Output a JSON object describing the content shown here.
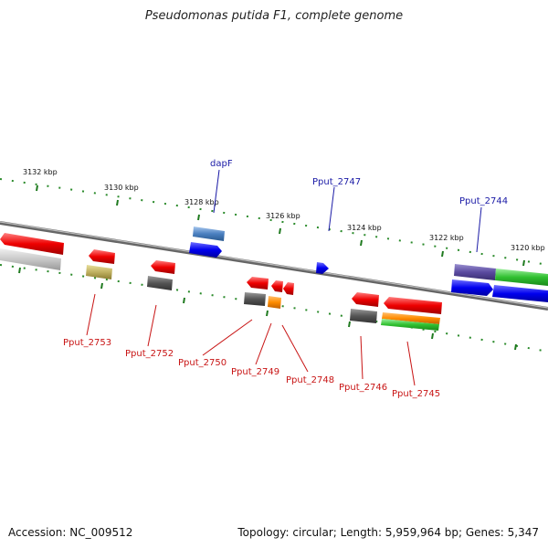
{
  "title": "Pseudomonas putida F1, complete genome",
  "footer": {
    "accession": "Accession: NC_009512",
    "summary": "Topology: circular; Length: 5,959,964 bp; Genes: 5,347"
  },
  "scale_labels": [
    "3132 kbp",
    "3130 kbp",
    "3128 kbp",
    "3126 kbp",
    "3124 kbp",
    "3122 kbp",
    "3120 kbp"
  ],
  "gene_labels_top": [
    "dapF",
    "Pput_2747",
    "Pput_2744"
  ],
  "gene_labels_bottom": [
    "Pput_2753",
    "Pput_2752",
    "Pput_2750",
    "Pput_2749",
    "Pput_2748",
    "Pput_2746",
    "Pput_2745"
  ],
  "colors": {
    "forward_cds": "#0000ee",
    "reverse_cds": "#ee0000",
    "label_forward": "#1a1aa6",
    "label_reverse": "#c81414",
    "backbone": "#888888",
    "tick": "#1f7a1f"
  }
}
